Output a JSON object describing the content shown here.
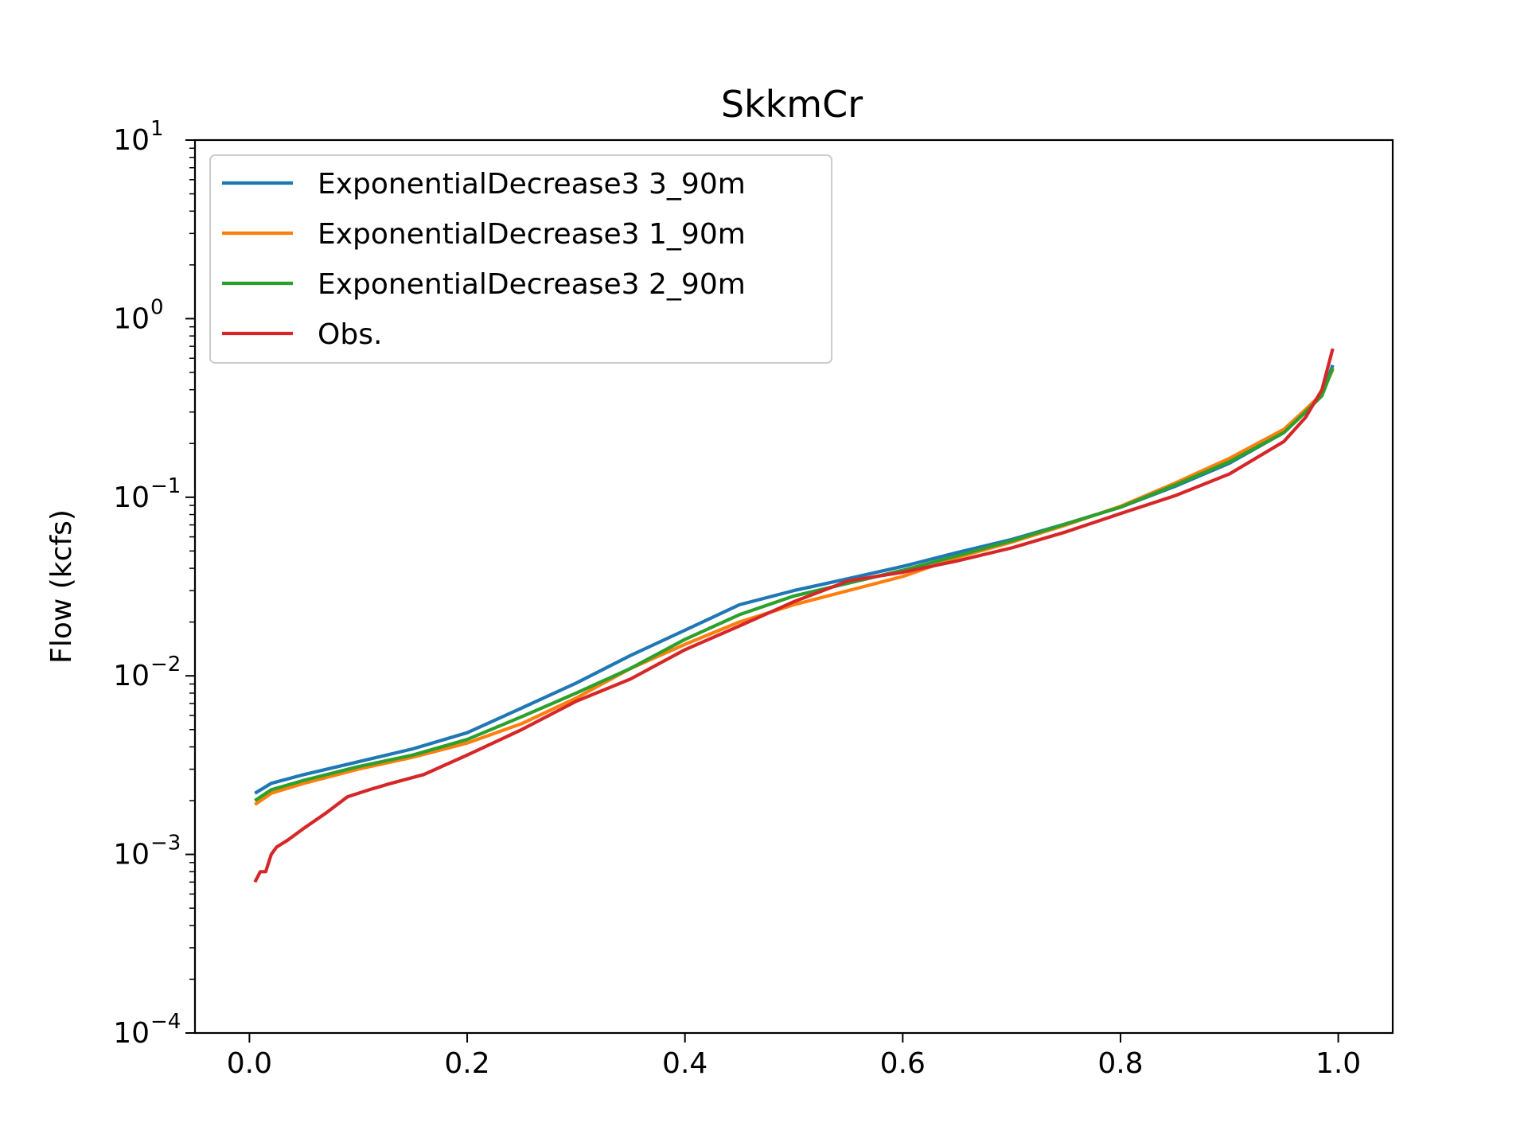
{
  "chart_data": {
    "type": "line",
    "title": "SkkmCr",
    "xlabel": "",
    "ylabel": "Flow (kcfs)",
    "xlim": [
      -0.05,
      1.05
    ],
    "ylim": [
      0.0001,
      10
    ],
    "yscale": "log",
    "grid": false,
    "legend_position": "upper-left",
    "x_ticks": [
      {
        "value": 0.0,
        "label": "0.0"
      },
      {
        "value": 0.2,
        "label": "0.2"
      },
      {
        "value": 0.4,
        "label": "0.4"
      },
      {
        "value": 0.6,
        "label": "0.6"
      },
      {
        "value": 0.8,
        "label": "0.8"
      },
      {
        "value": 1.0,
        "label": "1.0"
      }
    ],
    "y_ticks": [
      {
        "value": 10,
        "base": "10",
        "exp": "1"
      },
      {
        "value": 1,
        "base": "10",
        "exp": "0"
      },
      {
        "value": 0.1,
        "base": "10",
        "exp": "−1"
      },
      {
        "value": 0.01,
        "base": "10",
        "exp": "−2"
      },
      {
        "value": 0.001,
        "base": "10",
        "exp": "−3"
      },
      {
        "value": 0.0001,
        "base": "10",
        "exp": "−4"
      }
    ],
    "series": [
      {
        "name": "ExponentialDecrease3 3_90m",
        "color": "#1f77b4",
        "x": [
          0.005,
          0.02,
          0.05,
          0.1,
          0.15,
          0.2,
          0.25,
          0.3,
          0.35,
          0.4,
          0.45,
          0.5,
          0.55,
          0.6,
          0.65,
          0.7,
          0.75,
          0.8,
          0.85,
          0.9,
          0.95,
          0.97,
          0.985,
          0.995
        ],
        "values": [
          0.0022,
          0.0025,
          0.0028,
          0.0033,
          0.0039,
          0.0048,
          0.0066,
          0.0091,
          0.013,
          0.018,
          0.025,
          0.03,
          0.035,
          0.041,
          0.049,
          0.058,
          0.071,
          0.088,
          0.115,
          0.155,
          0.23,
          0.3,
          0.38,
          0.55
        ]
      },
      {
        "name": "ExponentialDecrease3 1_90m",
        "color": "#ff7f0e",
        "x": [
          0.005,
          0.02,
          0.05,
          0.1,
          0.15,
          0.2,
          0.25,
          0.3,
          0.35,
          0.4,
          0.45,
          0.5,
          0.55,
          0.6,
          0.65,
          0.7,
          0.75,
          0.8,
          0.85,
          0.9,
          0.95,
          0.97,
          0.985,
          0.995
        ],
        "values": [
          0.0019,
          0.0022,
          0.0025,
          0.003,
          0.0035,
          0.0042,
          0.0054,
          0.0075,
          0.011,
          0.015,
          0.02,
          0.025,
          0.03,
          0.036,
          0.046,
          0.056,
          0.07,
          0.089,
          0.12,
          0.165,
          0.24,
          0.31,
          0.38,
          0.52
        ]
      },
      {
        "name": "ExponentialDecrease3 2_90m",
        "color": "#2ca02c",
        "x": [
          0.005,
          0.02,
          0.05,
          0.1,
          0.15,
          0.2,
          0.25,
          0.3,
          0.35,
          0.4,
          0.45,
          0.5,
          0.55,
          0.6,
          0.65,
          0.7,
          0.75,
          0.8,
          0.85,
          0.9,
          0.95,
          0.97,
          0.985,
          0.995
        ],
        "values": [
          0.002,
          0.0023,
          0.0026,
          0.0031,
          0.0036,
          0.0044,
          0.0059,
          0.008,
          0.011,
          0.016,
          0.022,
          0.028,
          0.033,
          0.039,
          0.047,
          0.057,
          0.071,
          0.088,
          0.117,
          0.158,
          0.23,
          0.3,
          0.37,
          0.53
        ]
      },
      {
        "name": "Obs.",
        "color": "#d62728",
        "x": [
          0.005,
          0.01,
          0.015,
          0.02,
          0.025,
          0.035,
          0.05,
          0.07,
          0.09,
          0.11,
          0.13,
          0.16,
          0.2,
          0.25,
          0.3,
          0.35,
          0.4,
          0.45,
          0.5,
          0.55,
          0.6,
          0.65,
          0.7,
          0.75,
          0.8,
          0.85,
          0.9,
          0.95,
          0.97,
          0.985,
          0.995
        ],
        "values": [
          0.0007,
          0.0008,
          0.0008,
          0.001,
          0.0011,
          0.0012,
          0.0014,
          0.0017,
          0.0021,
          0.0023,
          0.0025,
          0.0028,
          0.0036,
          0.005,
          0.0072,
          0.0096,
          0.014,
          0.019,
          0.026,
          0.034,
          0.038,
          0.044,
          0.052,
          0.064,
          0.081,
          0.102,
          0.135,
          0.205,
          0.28,
          0.4,
          0.68
        ]
      }
    ]
  }
}
